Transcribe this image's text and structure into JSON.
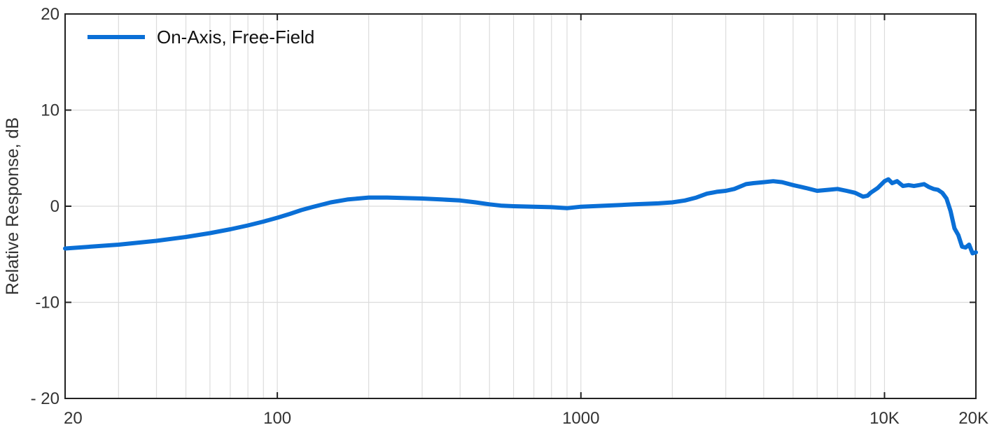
{
  "chart_data": {
    "type": "line",
    "title": "",
    "xlabel": "",
    "ylabel": "Relative Response, dB",
    "x_scale": "log",
    "xlim": [
      20,
      20000
    ],
    "ylim": [
      -20,
      20
    ],
    "grid": true,
    "legend_position": "top-left",
    "x_ticks": [
      {
        "value": 20,
        "label": "20"
      },
      {
        "value": 100,
        "label": "100"
      },
      {
        "value": 1000,
        "label": "1000"
      },
      {
        "value": 10000,
        "label": "10K"
      },
      {
        "value": 20000,
        "label": "20K"
      }
    ],
    "y_ticks": [
      {
        "value": 20,
        "label": "20"
      },
      {
        "value": 10,
        "label": "10"
      },
      {
        "value": 0,
        "label": "0"
      },
      {
        "value": -10,
        "label": "-10"
      },
      {
        "value": -20,
        "label": "- 20"
      }
    ],
    "series": [
      {
        "name": "On-Axis, Free-Field",
        "color": "#0a6fd6",
        "x": [
          20,
          30,
          40,
          50,
          60,
          70,
          80,
          90,
          100,
          110,
          120,
          130,
          150,
          170,
          200,
          230,
          260,
          300,
          350,
          400,
          450,
          500,
          550,
          600,
          700,
          800,
          900,
          1000,
          1200,
          1500,
          1800,
          2000,
          2200,
          2400,
          2600,
          2800,
          3000,
          3200,
          3500,
          3700,
          4000,
          4300,
          4600,
          5000,
          5500,
          6000,
          6500,
          7000,
          7500,
          8000,
          8500,
          8800,
          9000,
          9500,
          10000,
          10300,
          10600,
          11000,
          11500,
          12000,
          12500,
          13000,
          13500,
          14000,
          14500,
          15000,
          15500,
          16000,
          16500,
          17000,
          17500,
          18000,
          18500,
          19000,
          19500,
          20000
        ],
        "values": [
          -4.4,
          -4.0,
          -3.6,
          -3.2,
          -2.8,
          -2.4,
          -2.0,
          -1.6,
          -1.2,
          -0.8,
          -0.4,
          -0.1,
          0.4,
          0.7,
          0.9,
          0.9,
          0.85,
          0.8,
          0.7,
          0.6,
          0.4,
          0.2,
          0.05,
          0.0,
          -0.05,
          -0.1,
          -0.2,
          -0.05,
          0.05,
          0.2,
          0.3,
          0.4,
          0.6,
          0.9,
          1.3,
          1.5,
          1.6,
          1.8,
          2.3,
          2.4,
          2.5,
          2.6,
          2.5,
          2.2,
          1.9,
          1.6,
          1.7,
          1.8,
          1.6,
          1.4,
          1.0,
          1.1,
          1.4,
          1.9,
          2.6,
          2.8,
          2.4,
          2.6,
          2.1,
          2.2,
          2.1,
          2.2,
          2.3,
          2.0,
          1.8,
          1.7,
          1.4,
          0.8,
          -0.5,
          -2.3,
          -3.0,
          -4.2,
          -4.3,
          -4.0,
          -4.9,
          -4.8
        ]
      }
    ]
  }
}
